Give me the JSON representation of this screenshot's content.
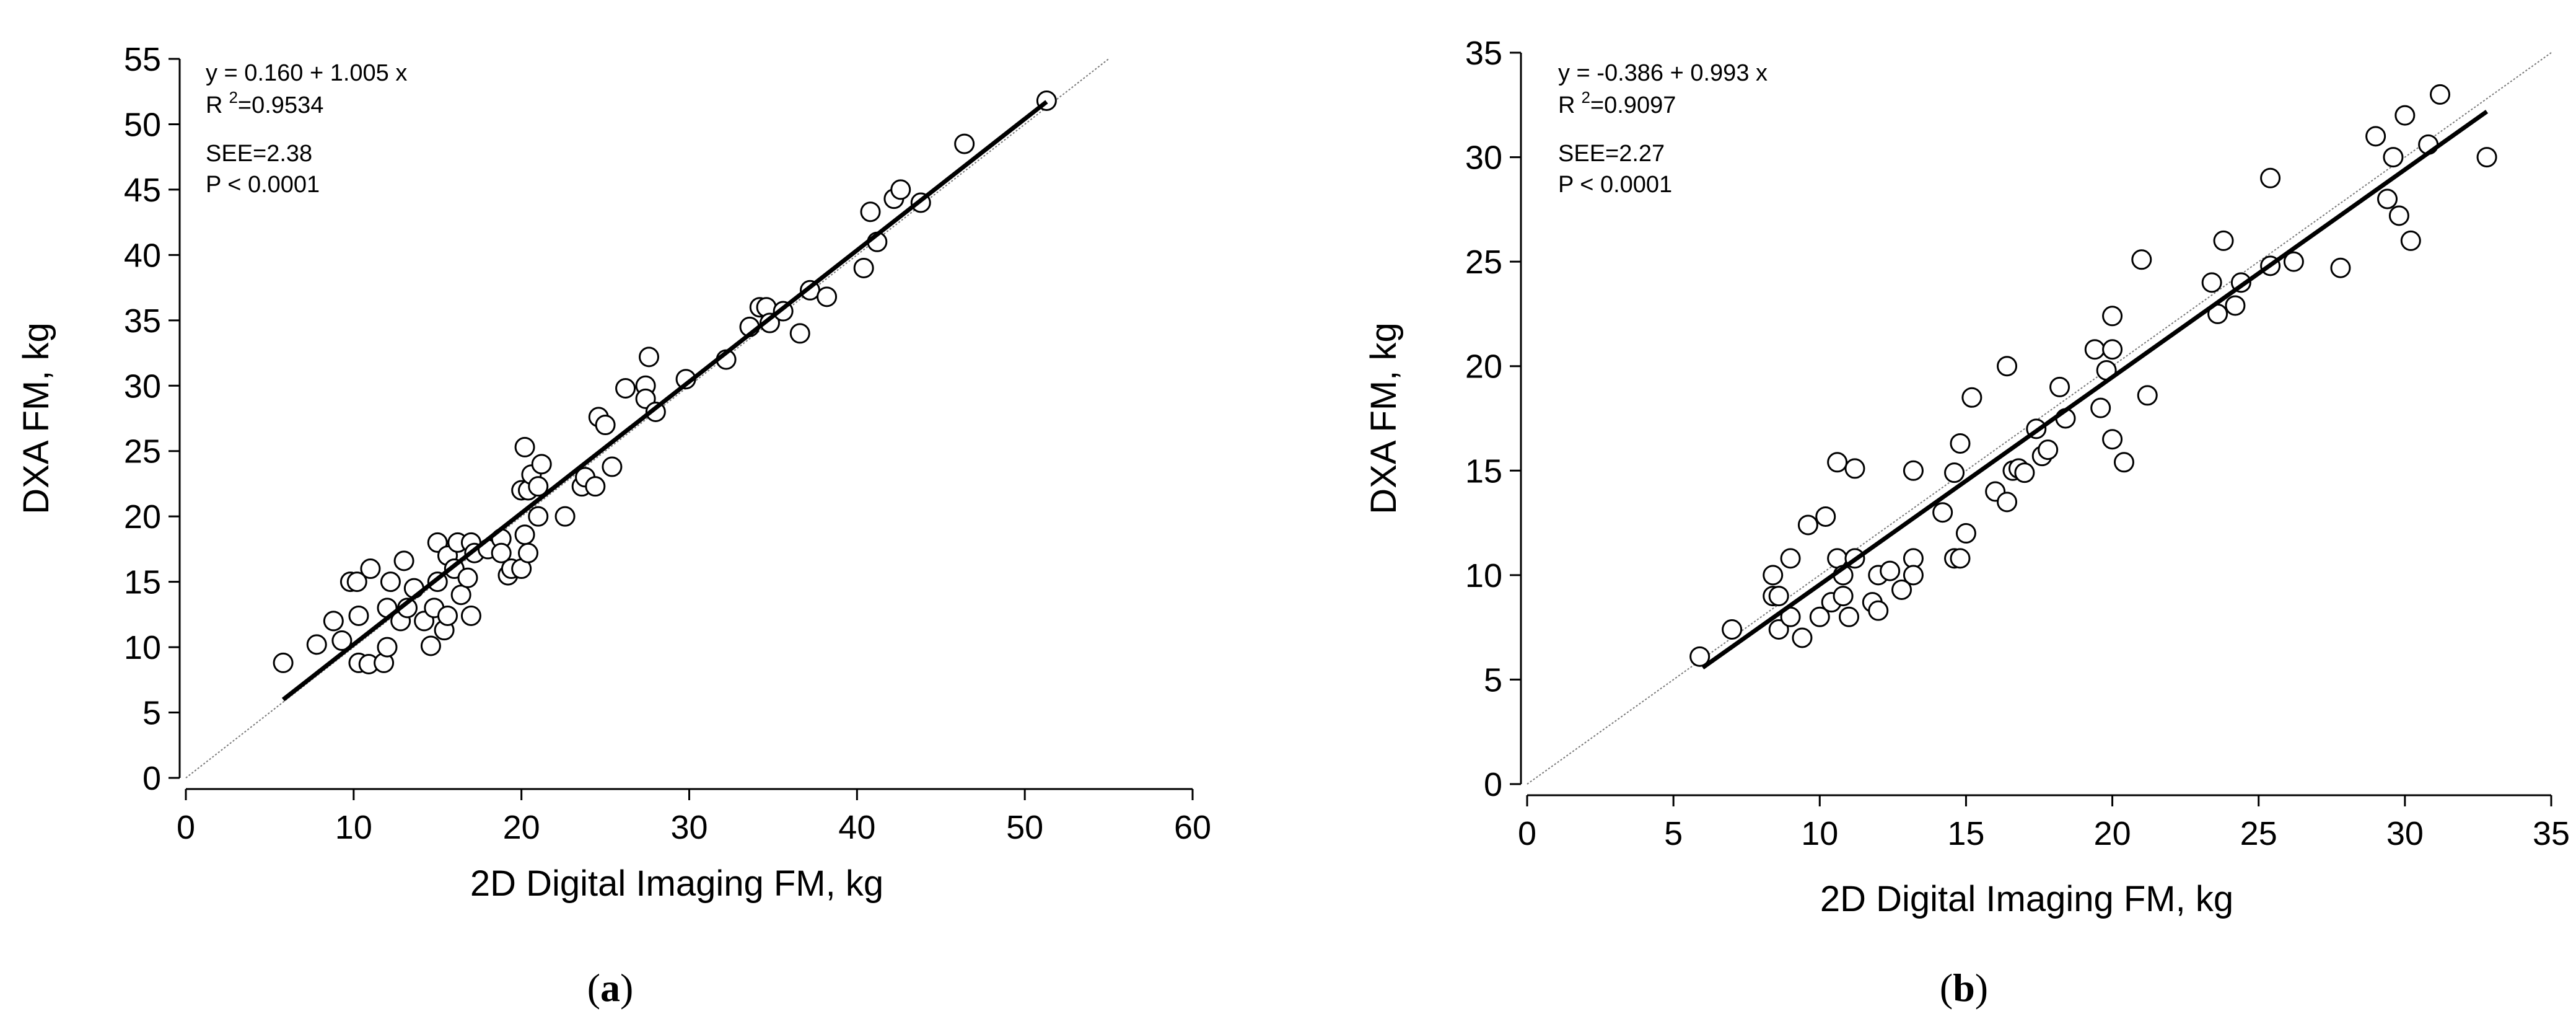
{
  "chart_data": [
    {
      "type": "scatter",
      "panel": "(a)",
      "caption": {
        "open": "(",
        "letter": "a",
        "close": ")"
      },
      "xlabel": "2D Digital Imaging FM, kg",
      "ylabel": "DXA FM, kg",
      "xlim": [
        0,
        60
      ],
      "ylim": [
        0,
        55
      ],
      "xticks": [
        0,
        10,
        20,
        30,
        40,
        50,
        60
      ],
      "yticks": [
        0,
        5,
        10,
        15,
        20,
        25,
        30,
        35,
        40,
        45,
        50,
        55
      ],
      "annotation": {
        "equation": "y = 0.160  +  1.005  x",
        "r2_prefix": "R",
        "r2_sup": "2",
        "r2_value": "=0.9534",
        "see": "SEE=2.38",
        "p": "P < 0.0001"
      },
      "regression": {
        "intercept": 0.16,
        "slope": 1.005,
        "x_range": [
          5.8,
          51.3
        ]
      },
      "identity_line": {
        "x_range": [
          0,
          55
        ]
      },
      "points": [
        [
          5.8,
          8.8
        ],
        [
          7.8,
          10.2
        ],
        [
          8.8,
          12
        ],
        [
          9.3,
          10.5
        ],
        [
          9.8,
          15
        ],
        [
          10.2,
          15
        ],
        [
          10.3,
          8.8
        ],
        [
          10.3,
          12.4
        ],
        [
          10.9,
          8.7
        ],
        [
          11.0,
          16
        ],
        [
          11.8,
          8.8
        ],
        [
          12.0,
          10
        ],
        [
          12.0,
          13
        ],
        [
          12.2,
          15
        ],
        [
          12.8,
          12
        ],
        [
          13.0,
          16.6
        ],
        [
          13.2,
          13
        ],
        [
          13.6,
          14.5
        ],
        [
          14.2,
          12
        ],
        [
          14.6,
          10.1
        ],
        [
          14.8,
          13
        ],
        [
          15.0,
          15
        ],
        [
          15.0,
          18
        ],
        [
          15.4,
          11.3
        ],
        [
          15.6,
          17
        ],
        [
          15.6,
          12.4
        ],
        [
          16.0,
          16
        ],
        [
          16.2,
          18
        ],
        [
          16.4,
          14
        ],
        [
          16.8,
          15.3
        ],
        [
          17.0,
          12.4
        ],
        [
          17.0,
          18
        ],
        [
          17.2,
          17.2
        ],
        [
          18.0,
          17.5
        ],
        [
          18.8,
          18.3
        ],
        [
          18.8,
          17.2
        ],
        [
          19.2,
          15.5
        ],
        [
          19.4,
          16
        ],
        [
          20.0,
          16
        ],
        [
          20.0,
          22
        ],
        [
          20.2,
          25.3
        ],
        [
          20.2,
          18.6
        ],
        [
          20.4,
          17.2
        ],
        [
          20.4,
          22
        ],
        [
          20.6,
          23.2
        ],
        [
          21.0,
          20
        ],
        [
          21.0,
          22.3
        ],
        [
          21.2,
          24
        ],
        [
          22.6,
          20
        ],
        [
          23.6,
          22.3
        ],
        [
          23.8,
          23
        ],
        [
          24.4,
          22.3
        ],
        [
          24.6,
          27.6
        ],
        [
          25.0,
          27
        ],
        [
          25.4,
          23.8
        ],
        [
          26.2,
          29.8
        ],
        [
          27.4,
          30
        ],
        [
          27.4,
          29
        ],
        [
          27.6,
          32.2
        ],
        [
          28.0,
          28
        ],
        [
          29.8,
          30.5
        ],
        [
          32.2,
          32
        ],
        [
          33.6,
          34.5
        ],
        [
          34.2,
          36
        ],
        [
          34.6,
          36
        ],
        [
          34.8,
          34.8
        ],
        [
          35.6,
          35.7
        ],
        [
          36.6,
          34
        ],
        [
          37.2,
          37.3
        ],
        [
          38.2,
          36.8
        ],
        [
          40.4,
          39
        ],
        [
          40.8,
          43.3
        ],
        [
          41.2,
          41
        ],
        [
          42.2,
          44.3
        ],
        [
          42.6,
          45
        ],
        [
          43.8,
          44
        ],
        [
          46.4,
          48.5
        ],
        [
          51.3,
          51.8
        ]
      ]
    },
    {
      "type": "scatter",
      "panel": "(b)",
      "caption": {
        "open": "(",
        "letter": "b",
        "close": ")"
      },
      "xlabel": "2D Digital Imaging FM, kg",
      "ylabel": "DXA FM, kg",
      "xlim": [
        0,
        35
      ],
      "ylim": [
        0,
        35
      ],
      "xticks": [
        0,
        5,
        10,
        15,
        20,
        25,
        30,
        35
      ],
      "yticks": [
        0,
        5,
        10,
        15,
        20,
        25,
        30,
        35
      ],
      "annotation": {
        "equation": "y = -0.386  +  0.993  x",
        "r2_prefix": "R",
        "r2_sup": "2",
        "r2_value": "=0.9097",
        "see": "SEE=2.27",
        "p": "P < 0.0001"
      },
      "regression": {
        "intercept": -0.386,
        "slope": 0.993,
        "x_range": [
          6.0,
          32.8
        ]
      },
      "identity_line": {
        "x_range": [
          0,
          35
        ]
      },
      "points": [
        [
          5.9,
          6.1
        ],
        [
          7.0,
          7.4
        ],
        [
          8.4,
          10
        ],
        [
          8.4,
          9
        ],
        [
          8.6,
          9
        ],
        [
          8.6,
          7.4
        ],
        [
          9.0,
          10.8
        ],
        [
          9.0,
          8
        ],
        [
          9.4,
          7
        ],
        [
          9.6,
          12.4
        ],
        [
          10.0,
          8
        ],
        [
          10.2,
          12.8
        ],
        [
          10.4,
          8.7
        ],
        [
          10.6,
          15.4
        ],
        [
          10.6,
          10.8
        ],
        [
          10.8,
          9
        ],
        [
          10.8,
          10
        ],
        [
          11.0,
          8
        ],
        [
          11.2,
          10.8
        ],
        [
          11.2,
          15.1
        ],
        [
          11.8,
          8.7
        ],
        [
          12.0,
          8.3
        ],
        [
          12.0,
          10
        ],
        [
          12.4,
          10.2
        ],
        [
          12.8,
          9.3
        ],
        [
          13.2,
          15
        ],
        [
          13.2,
          10.8
        ],
        [
          13.2,
          10
        ],
        [
          14.2,
          13
        ],
        [
          14.6,
          10.8
        ],
        [
          14.6,
          14.9
        ],
        [
          14.8,
          16.3
        ],
        [
          14.8,
          10.8
        ],
        [
          15.0,
          12
        ],
        [
          15.2,
          18.5
        ],
        [
          16.0,
          14
        ],
        [
          16.4,
          13.5
        ],
        [
          16.4,
          20
        ],
        [
          16.6,
          15
        ],
        [
          16.8,
          15.1
        ],
        [
          17.0,
          14.9
        ],
        [
          17.4,
          17
        ],
        [
          17.6,
          15.7
        ],
        [
          17.8,
          16
        ],
        [
          18.2,
          19
        ],
        [
          18.4,
          17.5
        ],
        [
          19.4,
          20.8
        ],
        [
          19.6,
          18
        ],
        [
          19.8,
          19.8
        ],
        [
          20.0,
          16.5
        ],
        [
          20.0,
          20.8
        ],
        [
          20.0,
          22.4
        ],
        [
          20.4,
          15.4
        ],
        [
          21.0,
          25.1
        ],
        [
          21.2,
          18.6
        ],
        [
          23.4,
          24
        ],
        [
          23.6,
          22.5
        ],
        [
          23.8,
          26
        ],
        [
          24.2,
          22.9
        ],
        [
          24.4,
          24
        ],
        [
          25.4,
          24.8
        ],
        [
          25.4,
          29
        ],
        [
          26.2,
          25
        ],
        [
          27.8,
          24.7
        ],
        [
          29.0,
          31
        ],
        [
          29.4,
          28
        ],
        [
          29.6,
          30
        ],
        [
          29.8,
          27.2
        ],
        [
          30.0,
          32
        ],
        [
          30.2,
          26
        ],
        [
          30.8,
          30.6
        ],
        [
          31.2,
          33
        ],
        [
          32.8,
          30
        ]
      ]
    }
  ]
}
